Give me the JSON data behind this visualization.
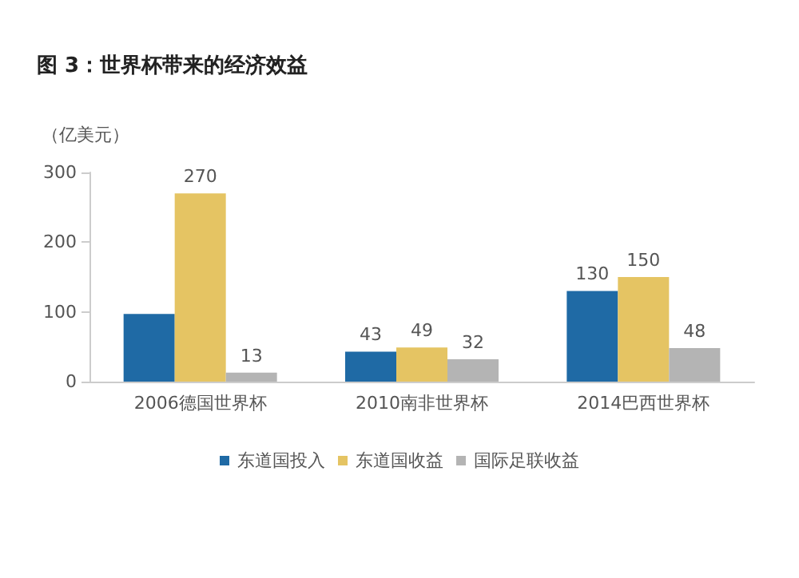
{
  "chart_data": {
    "type": "bar",
    "title": "图 3：世界杯带来的经济效益",
    "ylabel": "（亿美元）",
    "categories": [
      "2006德国世界杯",
      "2010南非世界杯",
      "2014巴西世界杯"
    ],
    "series": [
      {
        "name": "东道国投入",
        "color": "#1f6aa5",
        "values": [
          97,
          43,
          130
        ],
        "value_labels": [
          null,
          "43",
          "130"
        ]
      },
      {
        "name": "东道国收益",
        "color": "#e5c463",
        "values": [
          270,
          49,
          150
        ],
        "value_labels": [
          "270",
          "49",
          "150"
        ]
      },
      {
        "name": "国际足联收益",
        "color": "#b4b4b4",
        "values": [
          13,
          32,
          48
        ],
        "value_labels": [
          "13",
          "32",
          "48"
        ]
      }
    ],
    "ylim": [
      0,
      300
    ],
    "yticks": [
      0,
      100,
      200,
      300
    ],
    "grid": false,
    "legend": "bottom"
  }
}
